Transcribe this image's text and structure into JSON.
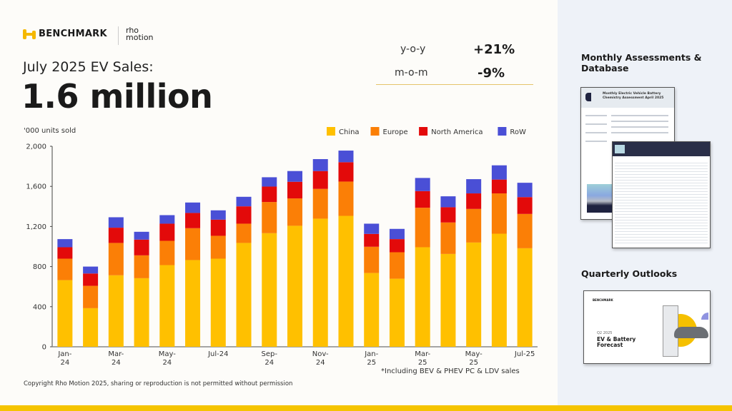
{
  "brand": {
    "benchmark": "BENCHMARK",
    "rho_motion": "rho motion"
  },
  "header": {
    "subtitle": "July 2025 EV Sales:",
    "headline": "1.6 million"
  },
  "stats": [
    {
      "label": "y-o-y",
      "value": "+21%"
    },
    {
      "label": "m-o-m",
      "value": "-9%"
    }
  ],
  "side_panel": {
    "monthly_title": "Monthly Assessments & Database",
    "monthly_doc_title": "Monthly Electric Vehicle Battery Chemistry Assessment April 2025",
    "quarterly_title": "Quarterly Outlooks",
    "quarterly_doc_period": "Q2 2025",
    "quarterly_doc_title": "EV & Battery Forecast"
  },
  "footer": {
    "note": "*Including BEV & PHEV PC & LDV sales",
    "copyright": "Copyright Rho Motion 2025, sharing or reproduction is not permitted without permission"
  },
  "chart_data": {
    "type": "bar",
    "stacked": true,
    "ylabel": "'000 units sold",
    "ylim": [
      0,
      2000
    ],
    "yticks": [
      "0",
      "400",
      "800",
      "1,200",
      "1,600",
      "2,000"
    ],
    "ytick_values": [
      0,
      400,
      800,
      1200,
      1600,
      2000
    ],
    "grid": false,
    "legend_position": "top-right",
    "categories": [
      "Jan-24",
      "Feb-24",
      "Mar-24",
      "Apr-24",
      "May-24",
      "Jun-24",
      "Jul-24",
      "Aug-24",
      "Sep-24",
      "Oct-24",
      "Nov-24",
      "Dec-24",
      "Jan-25",
      "Feb-25",
      "Mar-25",
      "Apr-25",
      "May-25",
      "Jun-25",
      "Jul-25"
    ],
    "xtick_labels": [
      {
        "index": 0,
        "line1": "Jan-",
        "line2": "24"
      },
      {
        "index": 2,
        "line1": "Mar-",
        "line2": "24"
      },
      {
        "index": 4,
        "line1": "May-",
        "line2": "24"
      },
      {
        "index": 6,
        "line1": "Jul-24",
        "line2": ""
      },
      {
        "index": 8,
        "line1": "Sep-",
        "line2": "24"
      },
      {
        "index": 10,
        "line1": "Nov-",
        "line2": "24"
      },
      {
        "index": 12,
        "line1": "Jan-",
        "line2": "25"
      },
      {
        "index": 14,
        "line1": "Mar-",
        "line2": "25"
      },
      {
        "index": 16,
        "line1": "May-",
        "line2": "25"
      },
      {
        "index": 18,
        "line1": "Jul-25",
        "line2": ""
      }
    ],
    "series": [
      {
        "name": "China",
        "color": "#ffc000",
        "values": [
          665,
          385,
          713,
          684,
          815,
          865,
          879,
          1036,
          1133,
          1207,
          1278,
          1306,
          736,
          679,
          993,
          926,
          1040,
          1128,
          983
        ]
      },
      {
        "name": "Europe",
        "color": "#fb7f06",
        "values": [
          214,
          223,
          323,
          228,
          242,
          318,
          228,
          192,
          311,
          273,
          297,
          342,
          262,
          264,
          394,
          314,
          335,
          402,
          342
        ]
      },
      {
        "name": "North America",
        "color": "#e30a0a",
        "values": [
          114,
          123,
          152,
          157,
          171,
          152,
          161,
          173,
          154,
          166,
          178,
          193,
          128,
          131,
          166,
          152,
          155,
          138,
          168
        ]
      },
      {
        "name": "RoW",
        "color": "#4a4fd6",
        "values": [
          81,
          69,
          104,
          78,
          85,
          104,
          93,
          95,
          93,
          107,
          119,
          116,
          102,
          102,
          131,
          109,
          142,
          142,
          143
        ]
      }
    ]
  }
}
